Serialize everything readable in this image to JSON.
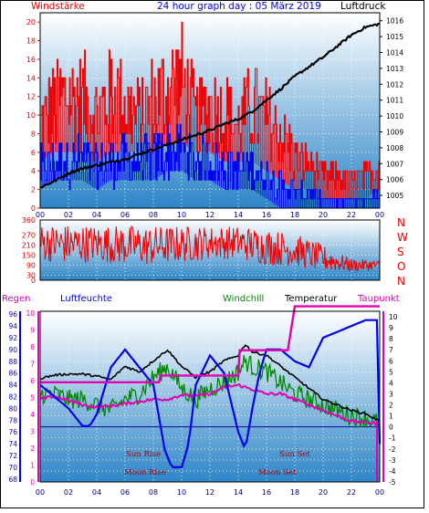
{
  "header": {
    "left_label": "Windstärke",
    "title": "24 hour graph day : 05 März 2019",
    "right_label": "Luftdruck"
  },
  "colors": {
    "red": "#ee0000",
    "blue": "#0000ee",
    "black": "#000000",
    "green": "#008800",
    "magenta": "#e000b0",
    "dark_blue": "#000088",
    "panel_top": "#2d86c8",
    "panel_bottom": "#ffffff"
  },
  "panel2": {
    "direction_letters": [
      "N",
      "W",
      "S",
      "O",
      "N"
    ]
  },
  "panel3": {
    "labels": {
      "regen": "Regen",
      "luftfeuchte": "Luftfeuchte",
      "windchill": "Windchill",
      "temperatur": "Temperatur",
      "taupunkt": "Taupunkt"
    },
    "events": {
      "sun_rise": "Sun Rise",
      "moon_rise": "Moon Rise",
      "sun_set": "Sun Set",
      "moon_set": "Moon Set"
    }
  },
  "chart_data": [
    {
      "type": "line",
      "title": "24 hour graph day : 05 März 2019",
      "x_ticks": [
        "00",
        "02",
        "04",
        "06",
        "08",
        "10",
        "12",
        "14",
        "16",
        "18",
        "20",
        "22",
        "00"
      ],
      "y_left": {
        "label": "Windstärke",
        "ticks": [
          0,
          2,
          4,
          6,
          8,
          10,
          12,
          14,
          16,
          18,
          20
        ],
        "ylim": [
          0,
          21
        ]
      },
      "y_right": {
        "label": "Luftdruck",
        "ticks": [
          1005,
          1006,
          1007,
          1008,
          1009,
          1010,
          1011,
          1012,
          1013,
          1014,
          1015,
          1016
        ],
        "ylim": [
          1004.2,
          1016.5
        ]
      },
      "series": [
        {
          "name": "Windstärke",
          "x": [
            0,
            1,
            2,
            3,
            4,
            5,
            6,
            7,
            8,
            9,
            10,
            11,
            12,
            13,
            14,
            15,
            16,
            17,
            18,
            19,
            20,
            21,
            22,
            23,
            24
          ],
          "gust_max": [
            13,
            16,
            18,
            17,
            15,
            18,
            16,
            14,
            17,
            19,
            20,
            14,
            16,
            15,
            13,
            16,
            14,
            12,
            8,
            7,
            5,
            5,
            4,
            5,
            7
          ],
          "avg": [
            5,
            6,
            6,
            6,
            5,
            6,
            6,
            6,
            6,
            7,
            7,
            6,
            6,
            5,
            5,
            5,
            4,
            3,
            2,
            2,
            1,
            1,
            1,
            1,
            2
          ]
        },
        {
          "name": "Luftdruck",
          "x": [
            0,
            1,
            2,
            3,
            4,
            5,
            6,
            7,
            8,
            9,
            10,
            11,
            12,
            13,
            14,
            15,
            16,
            17,
            18,
            19,
            20,
            21,
            22,
            23,
            24
          ],
          "values": [
            1005.5,
            1005.9,
            1006.4,
            1006.7,
            1006.9,
            1007.1,
            1007.3,
            1007.6,
            1007.9,
            1008.2,
            1008.5,
            1008.8,
            1009.1,
            1009.5,
            1009.8,
            1010.3,
            1011.0,
            1011.7,
            1012.5,
            1013.1,
            1013.7,
            1014.4,
            1015.1,
            1015.6,
            1015.8
          ]
        }
      ],
      "grid": true
    },
    {
      "type": "line",
      "y_left": {
        "ticks": [
          0,
          30,
          90,
          150,
          210,
          270,
          360
        ],
        "ylim": [
          0,
          360
        ]
      },
      "x_ticks": [],
      "series": [
        {
          "name": "Windrichtung",
          "x": [
            0,
            2,
            4,
            6,
            8,
            10,
            12,
            14,
            16,
            18,
            20,
            22,
            24
          ],
          "center": [
            225,
            215,
            220,
            210,
            205,
            215,
            225,
            225,
            200,
            180,
            130,
            90,
            90
          ],
          "spread": [
            110,
            120,
            110,
            120,
            120,
            110,
            100,
            100,
            110,
            100,
            80,
            40,
            30
          ]
        }
      ]
    },
    {
      "type": "line",
      "x_ticks": [
        "00",
        "02",
        "04",
        "06",
        "08",
        "10",
        "12",
        "14",
        "16",
        "18",
        "20",
        "22",
        "00"
      ],
      "y_regen": {
        "label": "Regen",
        "ticks": [
          0,
          1,
          2,
          3,
          4,
          5,
          6,
          7,
          8,
          9,
          10
        ],
        "ylim": [
          0,
          10
        ]
      },
      "y_humidity": {
        "label": "Luftfeuchte",
        "ticks": [
          68,
          70,
          72,
          74,
          76,
          78,
          80,
          82,
          84,
          86,
          88,
          90,
          92,
          94,
          96
        ],
        "ylim": [
          67.5,
          96.5
        ]
      },
      "y_temp": {
        "label": "Temperatur",
        "ticks": [
          -5,
          -4,
          -3,
          -2,
          -1,
          0,
          1,
          2,
          3,
          4,
          5,
          6,
          7,
          8,
          9,
          10
        ],
        "ylim": [
          -5,
          10.5
        ]
      },
      "series": [
        {
          "name": "Regen",
          "x": [
            0,
            4,
            8.5,
            9,
            13.5,
            14.5,
            16.5,
            17.5,
            18,
            24
          ],
          "values": [
            0,
            0,
            0,
            0,
            0,
            0,
            0,
            0,
            0,
            0
          ]
        },
        {
          "name": "Regen Summe",
          "x": [
            0,
            8.4,
            8.5,
            14,
            14.1,
            17.5,
            18.0,
            20.8,
            24
          ],
          "values": [
            5.9,
            5.9,
            6.3,
            6.3,
            7.8,
            7.8,
            10.4,
            10.4,
            10.4
          ]
        },
        {
          "name": "Luftfeuchte",
          "x": [
            0,
            1,
            2,
            3,
            3.5,
            4,
            5,
            6,
            7,
            8,
            8.8,
            9.3,
            10,
            10.5,
            11,
            12,
            13,
            14,
            14.5,
            15,
            15.5,
            16,
            17,
            18,
            19,
            20,
            21,
            22,
            23,
            23.8,
            24
          ],
          "values": [
            84,
            82,
            80,
            77,
            77,
            79,
            87,
            90,
            87,
            84,
            73,
            70,
            70,
            74,
            84,
            89,
            86,
            76,
            73,
            80,
            86,
            90,
            90,
            88,
            87,
            92,
            93,
            94,
            95,
            95,
            74
          ]
        },
        {
          "name": "Temperatur",
          "x": [
            0,
            1,
            2,
            3,
            4,
            5,
            6,
            7,
            8,
            9,
            10,
            11,
            12,
            13,
            14,
            14.5,
            15,
            16,
            17,
            18,
            19,
            20,
            21,
            22,
            23,
            24
          ],
          "values": [
            4.4,
            4.7,
            4.8,
            4.8,
            4.6,
            4.3,
            5.5,
            5.0,
            6.0,
            7.0,
            5.5,
            4.5,
            5.0,
            6.0,
            6.5,
            7.5,
            6.8,
            6.5,
            5.5,
            4.5,
            3.5,
            2.5,
            2.0,
            1.5,
            1.2,
            0.5
          ]
        },
        {
          "name": "Windchill",
          "x": [
            0,
            1,
            2,
            3,
            4,
            5,
            6,
            7,
            8,
            9,
            10,
            11,
            12,
            13,
            14,
            14.5,
            15,
            16,
            17,
            18,
            19,
            20,
            21,
            22,
            23,
            24
          ],
          "values": [
            3.0,
            3.0,
            2.5,
            2.5,
            2.0,
            1.5,
            2.5,
            3.0,
            4.5,
            5.5,
            3.5,
            2.5,
            3.5,
            4.0,
            5.0,
            6.0,
            5.5,
            5.0,
            4.0,
            3.0,
            2.5,
            2.0,
            1.5,
            1.0,
            0.8,
            0.3
          ]
        },
        {
          "name": "Taupunkt",
          "x": [
            0,
            1,
            2,
            3,
            4,
            5,
            6,
            7,
            8,
            9,
            10,
            11,
            12,
            13,
            14,
            15,
            16,
            17,
            18,
            19,
            20,
            21,
            22,
            23,
            24
          ],
          "values": [
            2.5,
            2.8,
            2.4,
            2.0,
            1.8,
            1.9,
            2.1,
            2.3,
            2.5,
            2.5,
            2.9,
            2.8,
            3.0,
            3.6,
            3.8,
            3.4,
            3.0,
            3.0,
            2.5,
            2.0,
            1.5,
            1.0,
            0.5,
            0.4,
            0.3
          ]
        }
      ],
      "grid": true
    }
  ]
}
